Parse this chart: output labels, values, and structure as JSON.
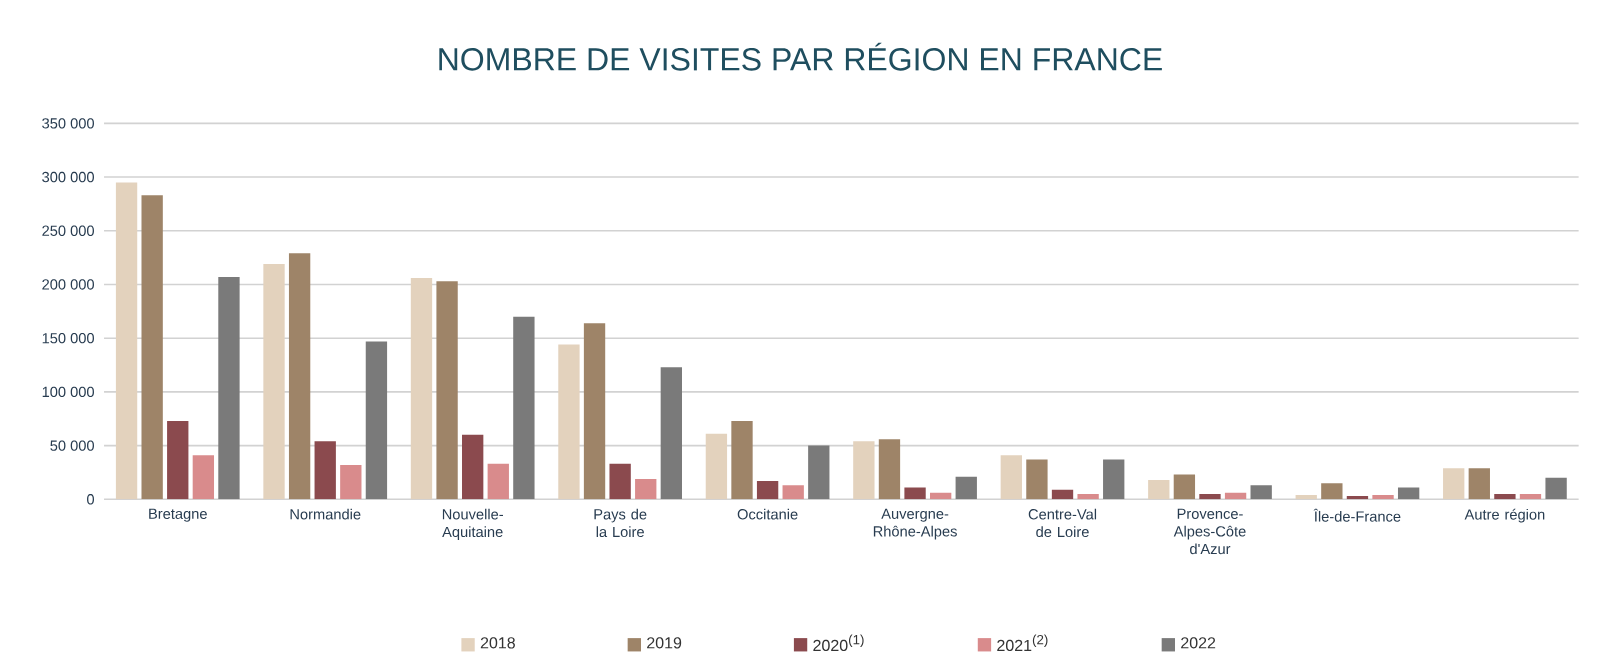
{
  "chart_data": {
    "type": "bar",
    "title": "NOMBRE DE VISITES PAR RÉGION EN FRANCE",
    "categories": [
      "Bretagne",
      "Normandie",
      "Nouvelle-Aquitaine",
      "Pays de la Loire",
      "Occitanie",
      "Auvergne-Rhône-Alpes",
      "Centre-Val de Loire",
      "Provence-Alpes-Côte d'Azur",
      "Île-de-France",
      "Autre région"
    ],
    "series": [
      {
        "name": "2018",
        "color": "#e3d2bd",
        "values": [
          295000,
          219000,
          206000,
          144000,
          61000,
          54000,
          41000,
          18000,
          4000,
          29000
        ]
      },
      {
        "name": "2019",
        "color": "#9e8468",
        "values": [
          283000,
          229000,
          203000,
          164000,
          73000,
          56000,
          37000,
          23000,
          15000,
          29000
        ]
      },
      {
        "name": "2020$^{(1)}$",
        "color": "#8b4a4e",
        "values": [
          73000,
          54000,
          60000,
          33000,
          17000,
          11000,
          9000,
          5000,
          3000,
          5000
        ]
      },
      {
        "name": "2021$^{(2)}$",
        "color": "#d98b8c",
        "values": [
          41000,
          32000,
          33000,
          19000,
          13000,
          6000,
          5000,
          6000,
          4000,
          5000
        ]
      },
      {
        "name": "2022",
        "color": "#7a7a7a",
        "values": [
          207000,
          147000,
          170000,
          123000,
          50000,
          21000,
          37000,
          13000,
          11000,
          20000
        ]
      }
    ],
    "ylim": [
      0,
      350000
    ],
    "yticks": [
      0,
      {
        "value": 50000,
        "label": "50 000"
      },
      {
        "value": 100000,
        "label": "100 000"
      },
      {
        "value": 150000,
        "label": "150 000"
      },
      {
        "value": 200000,
        "label": "200 000"
      },
      {
        "value": 250000,
        "label": "250 000"
      },
      {
        "value": 300000,
        "label": "300 000"
      },
      {
        "value": 350000,
        "label": "350 000"
      }
    ],
    "grid": "y",
    "legend": "bottom"
  }
}
